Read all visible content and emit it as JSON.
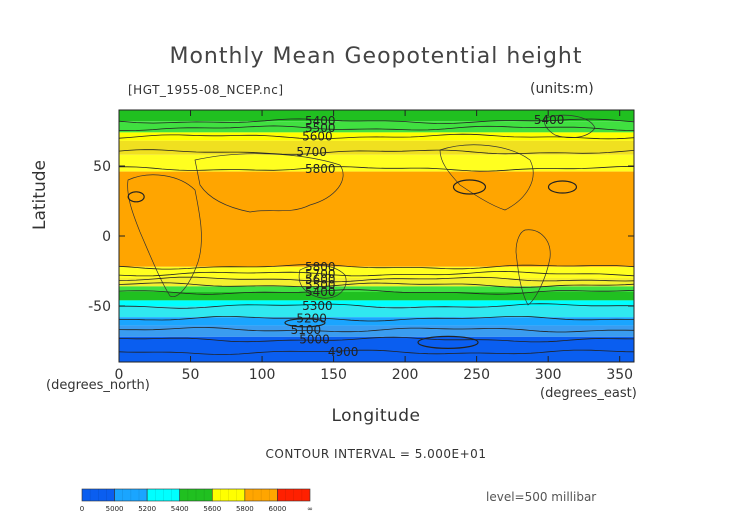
{
  "chart_data": {
    "type": "contour",
    "title": "Monthly Mean Geopotential height",
    "file_id": "[HGT_1955-08_NCEP.nc]",
    "units": "(units:m)",
    "xlabel": "Longitude",
    "ylabel": "Latitude",
    "xunit_left": "(degrees_north)",
    "xunit_right": "(degrees_east)",
    "xlim": [
      0,
      360
    ],
    "ylim": [
      -90,
      90
    ],
    "xticks": [
      0,
      50,
      100,
      150,
      200,
      250,
      300,
      350
    ],
    "yticks": [
      -50,
      0,
      50
    ],
    "contour_interval_text": "CONTOUR INTERVAL = 5.000E+01",
    "level_text": "level=500 millibar",
    "bands": [
      {
        "lat_from": 90,
        "lat_to": 82,
        "color": "#20c020"
      },
      {
        "lat_from": 82,
        "lat_to": 74,
        "color": "#40e040"
      },
      {
        "lat_from": 74,
        "lat_to": 68,
        "color": "#ffff00"
      },
      {
        "lat_from": 68,
        "lat_to": 58,
        "color": "#f0e020"
      },
      {
        "lat_from": 58,
        "lat_to": 46,
        "color": "#ffff20"
      },
      {
        "lat_from": 46,
        "lat_to": -22,
        "color": "#ffa500"
      },
      {
        "lat_from": -22,
        "lat_to": -30,
        "color": "#ffff20"
      },
      {
        "lat_from": -30,
        "lat_to": -36,
        "color": "#f4ef30"
      },
      {
        "lat_from": -36,
        "lat_to": -40,
        "color": "#40e040"
      },
      {
        "lat_from": -40,
        "lat_to": -46,
        "color": "#20c020"
      },
      {
        "lat_from": -46,
        "lat_to": -50,
        "color": "#00ffff"
      },
      {
        "lat_from": -50,
        "lat_to": -58,
        "color": "#30e8f0"
      },
      {
        "lat_from": -58,
        "lat_to": -64,
        "color": "#1aa5ff"
      },
      {
        "lat_from": -64,
        "lat_to": -72,
        "color": "#3a9cf0"
      },
      {
        "lat_from": -72,
        "lat_to": -90,
        "color": "#0a5ef0"
      }
    ],
    "contours": [
      {
        "lat": 82,
        "label": "5400",
        "label_lon": 130
      },
      {
        "lat": 77,
        "label": "5500",
        "label_lon": 130
      },
      {
        "lat": 71,
        "label": "5600",
        "label_lon": 128
      },
      {
        "lat": 60,
        "label": "5700",
        "label_lon": 124
      },
      {
        "lat": 48,
        "label": "5800",
        "label_lon": 130
      },
      {
        "lat": -22,
        "label": "5800",
        "label_lon": 130
      },
      {
        "lat": -27,
        "label": "5700",
        "label_lon": 130
      },
      {
        "lat": -31,
        "label": "5600",
        "label_lon": 130
      },
      {
        "lat": -35,
        "label": "5500",
        "label_lon": 130
      },
      {
        "lat": -40,
        "label": "5400",
        "label_lon": 130
      },
      {
        "lat": -50,
        "label": "5300",
        "label_lon": 128
      },
      {
        "lat": -59,
        "label": "5200",
        "label_lon": 124
      },
      {
        "lat": -67,
        "label": "5100",
        "label_lon": 120
      },
      {
        "lat": -74,
        "label": "5000",
        "label_lon": 126
      },
      {
        "lat": -83,
        "label": "4900",
        "label_lon": 146
      }
    ],
    "legend": {
      "colors": [
        "#0a5ef0",
        "#1aa5ff",
        "#00ffff",
        "#20c020",
        "#ffff00",
        "#ffa500",
        "#ff2000"
      ],
      "labels": [
        "0",
        "5000",
        "5200",
        "5400",
        "5600",
        "5800",
        "6000",
        "∞"
      ]
    }
  }
}
